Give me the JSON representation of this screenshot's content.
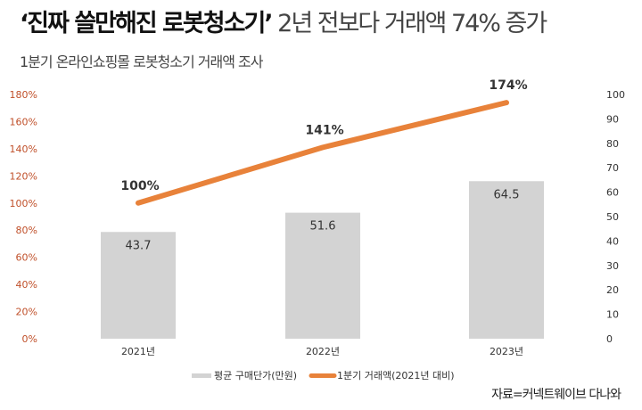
{
  "title_bold": "‘진짜 쓸만해진 로봇청소기’",
  "title_rest": " 2년 전보다 거래액 74% 증가",
  "subtitle": "1분기 온라인쇼핑몰 로봇청소기 거래액 조사",
  "source": "자료=커넥트웨이브 다나와",
  "chart_data": {
    "type": "bar+line",
    "categories": [
      "2021년",
      "2022년",
      "2023년"
    ],
    "series": [
      {
        "name": "평균 구매단가(만원)",
        "type": "bar",
        "axis": "right",
        "values": [
          43.7,
          51.6,
          64.5
        ],
        "color": "#d3d3d3",
        "labels": [
          "43.7",
          "51.6",
          "64.5"
        ]
      },
      {
        "name": "1분기 거래액(2021년 대비)",
        "type": "line",
        "axis": "left",
        "values": [
          100,
          141,
          174
        ],
        "color": "#e8823a",
        "labels": [
          "100%",
          "141%",
          "174%"
        ]
      }
    ],
    "left_axis": {
      "ticks": [
        "0%",
        "20%",
        "40%",
        "60%",
        "80%",
        "100%",
        "120%",
        "140%",
        "160%",
        "180%"
      ],
      "ylim": [
        0,
        180
      ],
      "color": "#c0502a"
    },
    "right_axis": {
      "ticks": [
        "0",
        "10",
        "20",
        "30",
        "40",
        "50",
        "60",
        "70",
        "80",
        "90",
        "100"
      ],
      "ylim": [
        0,
        100
      ]
    },
    "legend": "bottom"
  }
}
